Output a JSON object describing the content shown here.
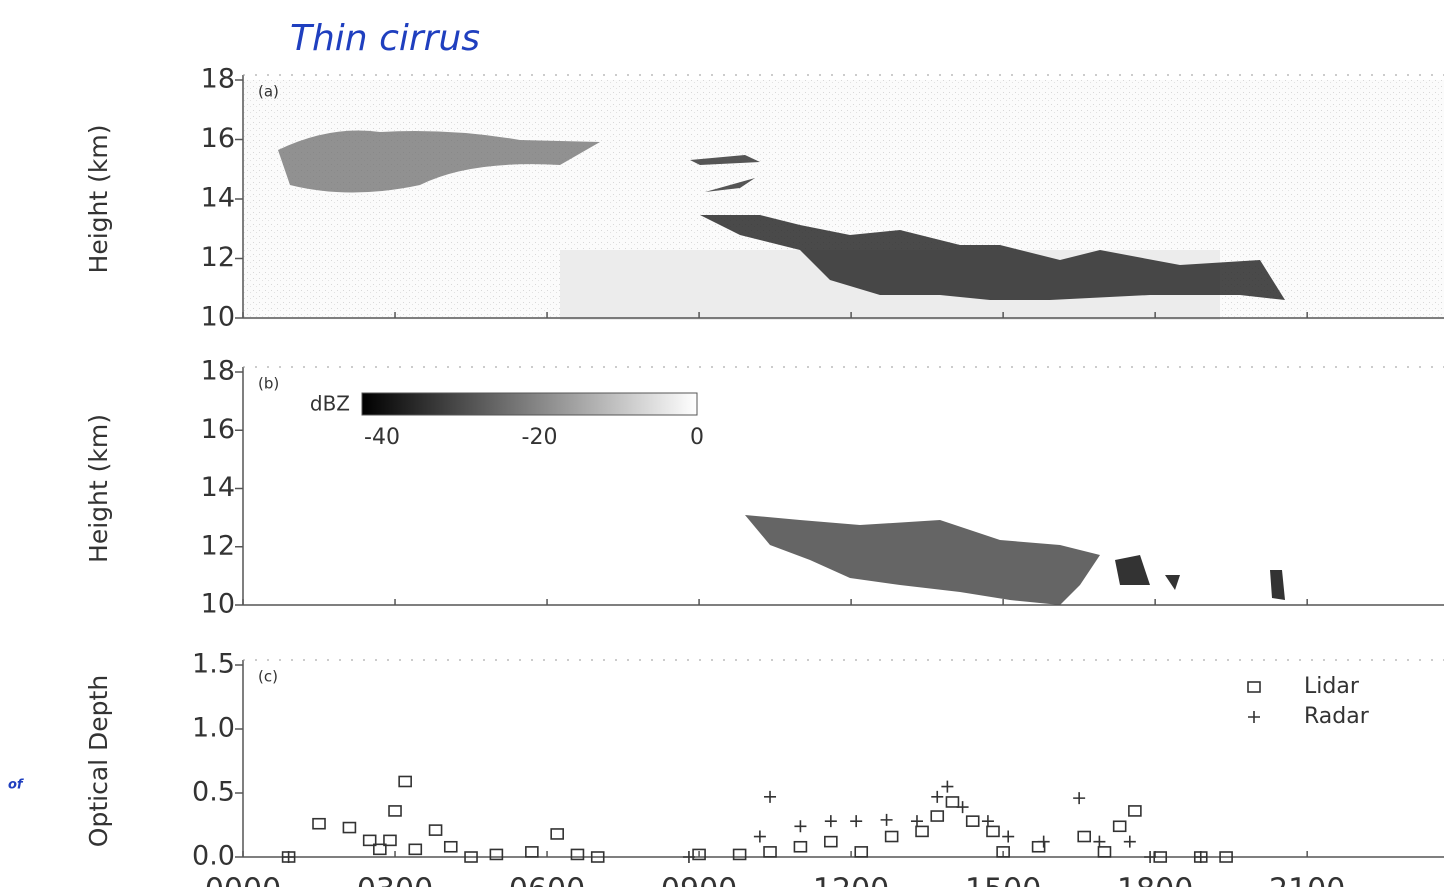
{
  "title": "Thin cirrus",
  "fragment": "of",
  "chart_data": [
    {
      "type": "image",
      "panel_label": "(a)",
      "ylabel": "Height (km)",
      "ylim": [
        10,
        18
      ],
      "yticks": [
        10,
        12,
        14,
        16,
        18
      ]
    },
    {
      "type": "image",
      "panel_label": "(b)",
      "ylabel": "Height (km)",
      "ylim": [
        10,
        18
      ],
      "yticks": [
        10,
        12,
        14,
        16,
        18
      ],
      "colorbar": {
        "label": "dBZ",
        "lim": [
          -40,
          0
        ],
        "ticks": [
          -40,
          -20,
          0
        ]
      }
    },
    {
      "type": "scatter",
      "panel_label": "(c)",
      "ylabel": "Optical Depth",
      "ylim": [
        0,
        1.5
      ],
      "yticks": [
        {
          "value": 0,
          "label": "0.0"
        },
        0.5,
        {
          "value": 1,
          "label": "1.0"
        },
        1.5
      ],
      "xlim": [
        0,
        23.7
      ],
      "xticks": [
        {
          "value": 0,
          "label": "0000"
        },
        {
          "value": 3,
          "label": "0300"
        },
        {
          "value": 6,
          "label": "0600"
        },
        {
          "value": 9,
          "label": "0900"
        },
        {
          "value": 12,
          "label": "1200"
        },
        {
          "value": 15,
          "label": "1500"
        },
        {
          "value": 18,
          "label": "1800"
        },
        {
          "value": 21,
          "label": "2100"
        }
      ],
      "legend": "top-right",
      "series": [
        {
          "name": "Lidar",
          "marker": "square",
          "color": "#333333",
          "x": [
            0.9,
            1.5,
            2.1,
            2.5,
            2.9,
            3.0,
            3.2,
            2.7,
            3.4,
            3.8,
            4.1,
            4.5,
            5.0,
            5.7,
            6.2,
            6.6,
            7.0,
            9.0,
            9.8,
            10.4,
            11.0,
            11.6,
            12.2,
            12.8,
            13.4,
            13.7,
            14.0,
            14.4,
            14.8,
            15.0,
            15.7,
            16.6,
            17.0,
            17.3,
            17.6,
            18.1,
            18.9,
            19.4
          ],
          "values": [
            0.0,
            0.26,
            0.23,
            0.13,
            0.13,
            0.36,
            0.59,
            0.06,
            0.06,
            0.21,
            0.08,
            0.0,
            0.02,
            0.04,
            0.18,
            0.02,
            0.0,
            0.02,
            0.02,
            0.04,
            0.08,
            0.12,
            0.04,
            0.16,
            0.2,
            0.32,
            0.43,
            0.28,
            0.2,
            0.04,
            0.08,
            0.16,
            0.04,
            0.24,
            0.36,
            0.0,
            0.0,
            0.0
          ]
        },
        {
          "name": "Radar",
          "marker": "plus",
          "color": "#333333",
          "x": [
            0.9,
            8.8,
            10.4,
            10.2,
            11.0,
            11.6,
            12.1,
            12.7,
            13.3,
            13.7,
            13.9,
            14.2,
            14.7,
            15.1,
            15.8,
            16.5,
            16.9,
            17.5,
            17.9,
            18.9
          ],
          "values": [
            0.0,
            0.0,
            0.47,
            0.16,
            0.24,
            0.28,
            0.28,
            0.29,
            0.28,
            0.47,
            0.55,
            0.39,
            0.28,
            0.16,
            0.12,
            0.46,
            0.12,
            0.12,
            0.0,
            0.0
          ]
        }
      ]
    }
  ]
}
